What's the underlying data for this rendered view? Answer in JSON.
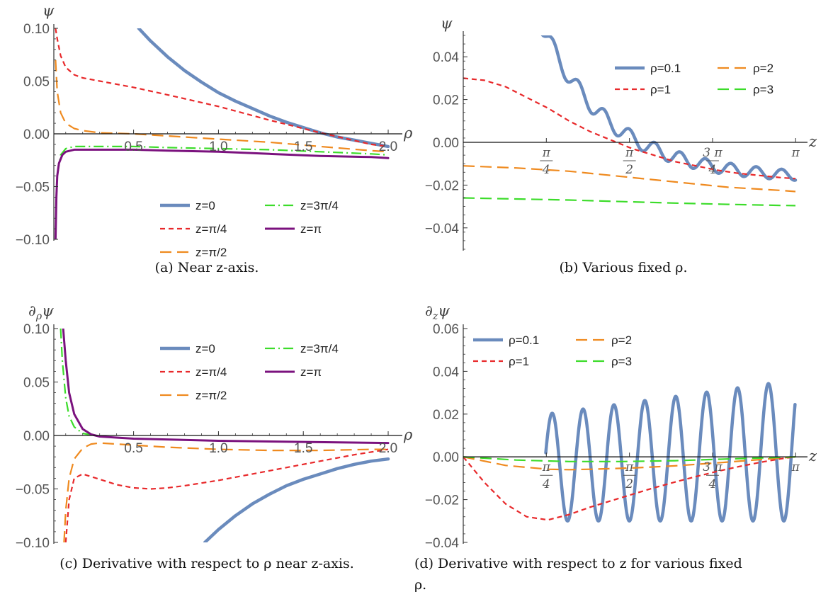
{
  "colors": {
    "blue": "#6a8bbd",
    "red": "#e8292b",
    "orange": "#ef8a1f",
    "green": "#3cdc2a",
    "purple": "#7b127e"
  },
  "chart_data": [
    {
      "id": "a",
      "type": "line",
      "caption": "(a) Near z-axis.",
      "ylabel": "ψ",
      "xlabel": "ρ",
      "xlim": [
        0.03,
        2.05
      ],
      "ylim": [
        -0.1,
        0.1
      ],
      "yticks": [
        {
          "v": 0.1,
          "t": "0.10"
        },
        {
          "v": 0.05,
          "t": "0.05"
        },
        {
          "v": 0.0,
          "t": "0.00"
        },
        {
          "v": -0.05,
          "t": "−0.05"
        },
        {
          "v": -0.1,
          "t": "−0.10"
        }
      ],
      "xticks": [
        {
          "v": 0.5,
          "t": "0.5"
        },
        {
          "v": 1.0,
          "t": "1.0"
        },
        {
          "v": 1.5,
          "t": "1.5"
        },
        {
          "v": 2.0,
          "t": "2.0"
        }
      ],
      "legend_position": "bottom-right",
      "legend": [
        "z=0",
        "z=3π/4",
        "z=π/4",
        "z=π",
        "z=π/2"
      ],
      "series": [
        {
          "name": "z=0",
          "color": "blue",
          "style": "thick",
          "x": [
            0.53,
            0.6,
            0.7,
            0.8,
            0.9,
            1.0,
            1.1,
            1.2,
            1.3,
            1.4,
            1.5,
            1.6,
            1.7,
            1.8,
            1.9,
            2.0
          ],
          "y": [
            0.1,
            0.088,
            0.073,
            0.06,
            0.049,
            0.039,
            0.031,
            0.024,
            0.017,
            0.011,
            0.006,
            0.001,
            -0.003,
            -0.006,
            -0.009,
            -0.012
          ]
        },
        {
          "name": "z=π/4",
          "color": "red",
          "style": "short-dash",
          "x": [
            0.04,
            0.05,
            0.07,
            0.1,
            0.15,
            0.2,
            0.3,
            0.5,
            0.7,
            1.0,
            1.3,
            1.6,
            1.9,
            2.0
          ],
          "y": [
            0.1,
            0.09,
            0.074,
            0.063,
            0.056,
            0.053,
            0.05,
            0.044,
            0.037,
            0.026,
            0.013,
            0.001,
            -0.01,
            -0.012
          ]
        },
        {
          "name": "z=π/2",
          "color": "orange",
          "style": "long-dash",
          "x": [
            0.04,
            0.05,
            0.07,
            0.1,
            0.15,
            0.2,
            0.3,
            0.5,
            0.7,
            1.0,
            1.3,
            1.6,
            1.9,
            2.0
          ],
          "y": [
            0.07,
            0.04,
            0.02,
            0.01,
            0.005,
            0.003,
            0.001,
            0.0,
            -0.002,
            -0.005,
            -0.008,
            -0.012,
            -0.016,
            -0.017
          ]
        },
        {
          "name": "z=3π/4",
          "color": "green",
          "style": "dash-dot",
          "x": [
            0.04,
            0.05,
            0.07,
            0.1,
            0.15,
            0.2,
            0.3,
            0.5,
            0.7,
            1.0,
            1.3,
            1.6,
            1.9,
            2.0
          ],
          "y": [
            -0.09,
            -0.04,
            -0.02,
            -0.014,
            -0.012,
            -0.012,
            -0.012,
            -0.012,
            -0.013,
            -0.014,
            -0.015,
            -0.017,
            -0.019,
            -0.02
          ]
        },
        {
          "name": "z=π",
          "color": "purple",
          "style": "solid",
          "x": [
            0.04,
            0.045,
            0.05,
            0.06,
            0.08,
            0.1,
            0.15,
            0.2,
            0.3,
            0.5,
            0.7,
            1.0,
            1.3,
            1.6,
            1.9,
            2.0
          ],
          "y": [
            -0.1,
            -0.06,
            -0.04,
            -0.028,
            -0.02,
            -0.017,
            -0.015,
            -0.015,
            -0.015,
            -0.015,
            -0.016,
            -0.017,
            -0.019,
            -0.021,
            -0.022,
            -0.023
          ]
        }
      ]
    },
    {
      "id": "b",
      "type": "line",
      "caption": "(b) Various fixed ρ.",
      "ylabel": "ψ",
      "xlabel": "z",
      "xlim": [
        0,
        3.2
      ],
      "ylim": [
        -0.05,
        0.05
      ],
      "yticks": [
        {
          "v": 0.04,
          "t": "0.04"
        },
        {
          "v": 0.02,
          "t": "0.02"
        },
        {
          "v": 0.0,
          "t": "0.00"
        },
        {
          "v": -0.02,
          "t": "−0.02"
        },
        {
          "v": -0.04,
          "t": "−0.04"
        }
      ],
      "xticks": [
        {
          "v": 0.7854,
          "num": "π",
          "den": "4"
        },
        {
          "v": 1.5708,
          "num": "π",
          "den": "2"
        },
        {
          "v": 2.3562,
          "num": "3 π",
          "den": "4"
        },
        {
          "v": 3.1416,
          "num": "π",
          "den": ""
        }
      ],
      "legend_position": "top-right",
      "legend": [
        "ρ=0.1",
        "ρ=2",
        "ρ=1",
        "ρ=3"
      ],
      "series": [
        {
          "name": "ρ=0.1",
          "color": "blue",
          "style": "thick",
          "generator": "rho01_psi"
        },
        {
          "name": "ρ=1",
          "color": "red",
          "style": "short-dash",
          "x": [
            0,
            0.2,
            0.4,
            0.6,
            0.8,
            1.0,
            1.2,
            1.4,
            1.6,
            1.8,
            2.0,
            2.2,
            2.4,
            2.6,
            2.8,
            3.0,
            3.14
          ],
          "y": [
            0.03,
            0.029,
            0.026,
            0.021,
            0.016,
            0.01,
            0.005,
            0.001,
            -0.003,
            -0.006,
            -0.009,
            -0.011,
            -0.013,
            -0.0145,
            -0.0155,
            -0.0165,
            -0.017
          ]
        },
        {
          "name": "ρ=2",
          "color": "orange",
          "style": "long-dash",
          "x": [
            0,
            0.5,
            1.0,
            1.5,
            2.0,
            2.5,
            3.0,
            3.14
          ],
          "y": [
            -0.011,
            -0.012,
            -0.0135,
            -0.016,
            -0.0185,
            -0.021,
            -0.0225,
            -0.023
          ]
        },
        {
          "name": "ρ=3",
          "color": "green",
          "style": "long-dash",
          "x": [
            0,
            0.5,
            1.0,
            1.5,
            2.0,
            2.5,
            3.0,
            3.14
          ],
          "y": [
            -0.026,
            -0.0265,
            -0.027,
            -0.0277,
            -0.0284,
            -0.029,
            -0.0295,
            -0.0296
          ]
        }
      ]
    },
    {
      "id": "c",
      "type": "line",
      "caption": "(c) Derivative with respect to ρ near z-axis.",
      "ylabel": "∂ρψ",
      "xlabel": "ρ",
      "xlim": [
        0.03,
        2.05
      ],
      "ylim": [
        -0.1,
        0.1
      ],
      "yticks": [
        {
          "v": 0.1,
          "t": "0.10"
        },
        {
          "v": 0.05,
          "t": "0.05"
        },
        {
          "v": 0.0,
          "t": "0.00"
        },
        {
          "v": -0.05,
          "t": "−0.05"
        },
        {
          "v": -0.1,
          "t": "−0.10"
        }
      ],
      "xticks": [
        {
          "v": 0.5,
          "t": "0.5"
        },
        {
          "v": 1.0,
          "t": "1.0"
        },
        {
          "v": 1.5,
          "t": "1.5"
        },
        {
          "v": 2.0,
          "t": "2.0"
        }
      ],
      "legend_position": "top-right",
      "legend": [
        "z=0",
        "z=3π/4",
        "z=π/4",
        "z=π",
        "z=π/2"
      ],
      "series": [
        {
          "name": "z=0",
          "color": "blue",
          "style": "thick",
          "x": [
            0.92,
            1.0,
            1.1,
            1.2,
            1.3,
            1.4,
            1.5,
            1.6,
            1.7,
            1.8,
            1.9,
            2.0
          ],
          "y": [
            -0.1,
            -0.088,
            -0.075,
            -0.064,
            -0.055,
            -0.047,
            -0.041,
            -0.036,
            -0.031,
            -0.027,
            -0.024,
            -0.022
          ]
        },
        {
          "name": "z=π/4",
          "color": "red",
          "style": "short-dash",
          "x": [
            0.1,
            0.12,
            0.15,
            0.2,
            0.3,
            0.4,
            0.5,
            0.6,
            0.7,
            0.8,
            1.0,
            1.2,
            1.4,
            1.6,
            1.8,
            2.0
          ],
          "y": [
            -0.1,
            -0.06,
            -0.04,
            -0.036,
            -0.041,
            -0.046,
            -0.049,
            -0.05,
            -0.049,
            -0.047,
            -0.042,
            -0.036,
            -0.03,
            -0.024,
            -0.018,
            -0.013
          ]
        },
        {
          "name": "z=π/2",
          "color": "orange",
          "style": "long-dash",
          "x": [
            0.09,
            0.1,
            0.12,
            0.15,
            0.2,
            0.25,
            0.3,
            0.5,
            0.7,
            1.0,
            1.3,
            1.6,
            1.9,
            2.0
          ],
          "y": [
            -0.1,
            -0.07,
            -0.04,
            -0.022,
            -0.012,
            -0.008,
            -0.007,
            -0.009,
            -0.011,
            -0.013,
            -0.014,
            -0.014,
            -0.013,
            -0.013
          ]
        },
        {
          "name": "z=3π/4",
          "color": "green",
          "style": "dash-dot",
          "x": [
            0.07,
            0.08,
            0.1,
            0.12,
            0.15,
            0.2,
            0.3,
            0.5,
            1.0,
            1.5,
            2.0
          ],
          "y": [
            0.1,
            0.07,
            0.035,
            0.018,
            0.008,
            0.002,
            -0.001,
            -0.003,
            -0.005,
            -0.006,
            -0.007
          ]
        },
        {
          "name": "z=π",
          "color": "purple",
          "style": "solid",
          "x": [
            0.085,
            0.1,
            0.12,
            0.15,
            0.2,
            0.25,
            0.3,
            0.5,
            1.0,
            1.5,
            2.0
          ],
          "y": [
            0.1,
            0.07,
            0.04,
            0.02,
            0.006,
            0.001,
            -0.001,
            -0.003,
            -0.005,
            -0.006,
            -0.007
          ]
        }
      ]
    },
    {
      "id": "d",
      "type": "line",
      "caption": "(d) Derivative with respect to z for various fixed ρ.",
      "ylabel": "∂zψ",
      "xlabel": "z",
      "xlim": [
        0,
        3.2
      ],
      "ylim": [
        -0.04,
        0.06
      ],
      "yticks": [
        {
          "v": 0.06,
          "t": "0.06"
        },
        {
          "v": 0.04,
          "t": "0.04"
        },
        {
          "v": 0.02,
          "t": "0.02"
        },
        {
          "v": 0.0,
          "t": "0.00"
        },
        {
          "v": -0.02,
          "t": "−0.02"
        },
        {
          "v": -0.04,
          "t": "−0.04"
        }
      ],
      "xticks": [
        {
          "v": 0.7854,
          "num": "π",
          "den": "4"
        },
        {
          "v": 1.5708,
          "num": "π",
          "den": "2"
        },
        {
          "v": 2.3562,
          "num": "3 π",
          "den": "4"
        },
        {
          "v": 3.1416,
          "num": "π",
          "den": ""
        }
      ],
      "legend_position": "top-left",
      "legend": [
        "ρ=0.1",
        "ρ=2",
        "ρ=1",
        "ρ=3"
      ],
      "series": [
        {
          "name": "ρ=0.1",
          "color": "blue",
          "style": "thick",
          "generator": "rho01_dz"
        },
        {
          "name": "ρ=1",
          "color": "red",
          "style": "short-dash",
          "x": [
            0,
            0.2,
            0.4,
            0.6,
            0.8,
            1.0,
            1.2,
            1.4,
            1.6,
            1.8,
            2.0,
            2.2,
            2.4,
            2.6,
            2.8,
            3.0,
            3.14
          ],
          "y": [
            0,
            -0.012,
            -0.022,
            -0.028,
            -0.0295,
            -0.027,
            -0.0235,
            -0.0205,
            -0.0175,
            -0.0145,
            -0.0118,
            -0.0092,
            -0.0068,
            -0.0046,
            -0.0026,
            -0.0009,
            0
          ]
        },
        {
          "name": "ρ=2",
          "color": "orange",
          "style": "long-dash",
          "x": [
            0,
            0.4,
            0.8,
            1.0,
            1.2,
            1.6,
            2.0,
            2.4,
            2.8,
            3.14
          ],
          "y": [
            0,
            -0.004,
            -0.0058,
            -0.006,
            -0.0058,
            -0.0052,
            -0.0042,
            -0.0028,
            -0.0013,
            0
          ]
        },
        {
          "name": "ρ=3",
          "color": "green",
          "style": "long-dash",
          "x": [
            0,
            0.5,
            1.0,
            1.5,
            2.0,
            2.5,
            3.14
          ],
          "y": [
            0,
            -0.0015,
            -0.0022,
            -0.0022,
            -0.0018,
            -0.001,
            0
          ]
        }
      ]
    }
  ]
}
